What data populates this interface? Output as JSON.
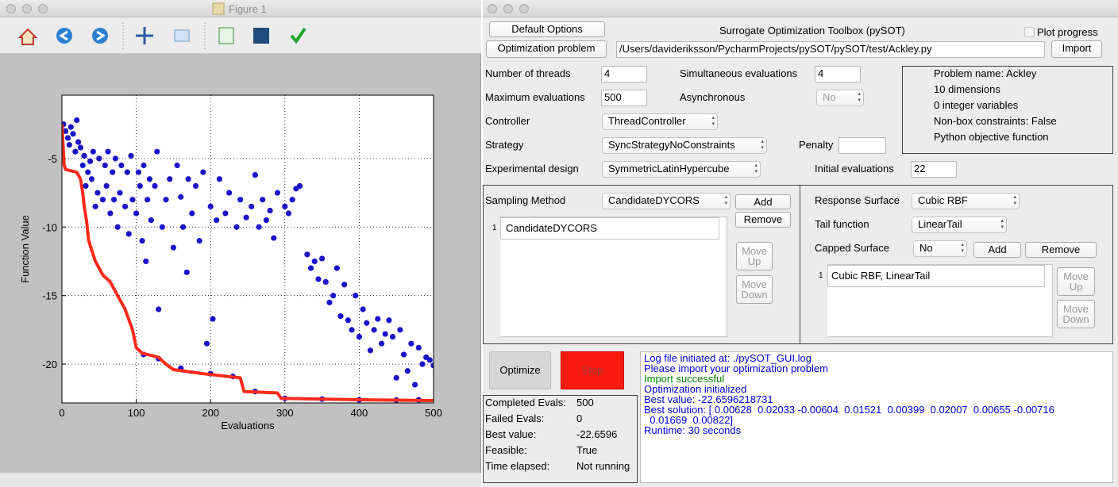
{
  "figure_window": {
    "title": "Figure 1"
  },
  "chart_data": {
    "type": "scatter",
    "xlabel": "Evaluations",
    "ylabel": "Function Value",
    "xlim": [
      0,
      500
    ],
    "ylim": [
      -22.83,
      -0.38
    ],
    "xticks": [
      0,
      100,
      200,
      300,
      400,
      500
    ],
    "yticks": [
      -20,
      -15,
      -10,
      -5
    ],
    "grid": true,
    "series": [
      {
        "type": "scatter",
        "color": "#1a14c8",
        "x": [
          2,
          5,
          8,
          10,
          12,
          15,
          18,
          20,
          22,
          25,
          28,
          30,
          32,
          35,
          38,
          40,
          42,
          45,
          48,
          50,
          55,
          58,
          60,
          62,
          65,
          68,
          70,
          72,
          75,
          78,
          80,
          85,
          88,
          90,
          93,
          95,
          100,
          103,
          105,
          108,
          110,
          113,
          115,
          118,
          120,
          125,
          128,
          130,
          135,
          140,
          145,
          150,
          155,
          160,
          163,
          168,
          170,
          175,
          180,
          185,
          190,
          195,
          200,
          203,
          208,
          212,
          220,
          225,
          235,
          240,
          248,
          255,
          260,
          265,
          270,
          275,
          280,
          285,
          290,
          300,
          305,
          310,
          315,
          320,
          330,
          335,
          340,
          345,
          350,
          355,
          360,
          365,
          370,
          375,
          380,
          385,
          390,
          395,
          400,
          405,
          410,
          415,
          420,
          425,
          430,
          435,
          440,
          445,
          450,
          455,
          460,
          465,
          470,
          475,
          480,
          485,
          490,
          495,
          500,
          110,
          130,
          160,
          200,
          230,
          260,
          300,
          350,
          400,
          450,
          480
        ],
        "values": [
          -2.5,
          -3,
          -3.5,
          -4,
          -2.7,
          -3.2,
          -4.5,
          -2.2,
          -3.8,
          -4.2,
          -5.5,
          -4.8,
          -7,
          -6,
          -5.2,
          -6.5,
          -4.5,
          -8.5,
          -7.5,
          -5,
          -8,
          -5.5,
          -7,
          -4.5,
          -9,
          -6,
          -8,
          -5,
          -10,
          -7.5,
          -5.5,
          -8.5,
          -6,
          -10.5,
          -4.8,
          -8,
          -9,
          -6,
          -7,
          -11,
          -5.5,
          -12.5,
          -8,
          -6.5,
          -9.5,
          -7,
          -4.5,
          -16,
          -10,
          -8,
          -6.5,
          -11.5,
          -5.5,
          -7.8,
          -10,
          -13.3,
          -6.5,
          -9,
          -7,
          -11,
          -6,
          -18.5,
          -8.5,
          -16.7,
          -9.5,
          -6.5,
          -9,
          -7.5,
          -10,
          -8,
          -9.3,
          -8.5,
          -6.2,
          -10,
          -8,
          -9.5,
          -8.8,
          -10.8,
          -7.5,
          -8.5,
          -9,
          -8,
          -7.2,
          -7,
          -12,
          -13,
          -12.5,
          -13.8,
          -12.3,
          -14,
          -15.5,
          -15,
          -13,
          -16.5,
          -14.2,
          -16.8,
          -17.5,
          -15,
          -18,
          -16,
          -17,
          -19,
          -17.5,
          -16.7,
          -18.5,
          -17.8,
          -16.8,
          -18,
          -21,
          -17.5,
          -19.3,
          -20.5,
          -18.5,
          -21.5,
          -18.8,
          -20,
          -19.5,
          -19.7,
          -20.1,
          -19.3,
          -19.6,
          -20.3,
          -20.7,
          -20.9,
          -22,
          -22.5,
          -22.55,
          -22.6,
          -22.62,
          -22.6
        ]
      },
      {
        "type": "line",
        "color": "#ff2a1a",
        "x": [
          0,
          3,
          5,
          20,
          25,
          28,
          30,
          33,
          36,
          45,
          50,
          55,
          65,
          75,
          85,
          95,
          100,
          108,
          130,
          140,
          150,
          190,
          240,
          245,
          290,
          295,
          400,
          500
        ],
        "values": [
          -2.5,
          -5.5,
          -5.8,
          -6,
          -6.5,
          -7.5,
          -8.5,
          -9.5,
          -11,
          -12.5,
          -13,
          -13.5,
          -14,
          -15,
          -16,
          -17.5,
          -18.8,
          -19.2,
          -19.5,
          -20,
          -20.4,
          -20.7,
          -21,
          -22,
          -22.1,
          -22.5,
          -22.6,
          -22.66
        ]
      }
    ]
  },
  "gui": {
    "default_options": "Default Options",
    "title": "Surrogate Optimization Toolbox (pySOT)",
    "plot_progress": "Plot progress",
    "optimization_problem": "Optimization problem",
    "path": "/Users/davideriksson/PycharmProjects/pySOT/pySOT/test/Ackley.py",
    "import": "Import",
    "threads_label": "Number of threads",
    "threads": "4",
    "simultaneous_label": "Simultaneous evaluations",
    "simultaneous": "4",
    "max_evals_label": "Maximum evaluations",
    "max_evals": "500",
    "asynchronous_label": "Asynchronous",
    "asynchronous": "No",
    "controller_label": "Controller",
    "controller": "ThreadController",
    "strategy_label": "Strategy",
    "strategy": "SyncStrategyNoConstraints",
    "penalty_label": "Penalty",
    "design_label": "Experimental design",
    "design": "SymmetricLatinHypercube",
    "initial_label": "Initial evaluations",
    "initial": "22",
    "info": [
      "Problem name: Ackley",
      "10 dimensions",
      "0 integer variables",
      "Non-box constraints: False",
      "Python objective function"
    ],
    "sampling_label": "Sampling Method",
    "sampling": "CandidateDYCORS",
    "sampling_add": "Add",
    "sampling_remove": "Remove",
    "sampling_list": [
      {
        "index": "1",
        "text": "CandidateDYCORS"
      }
    ],
    "sampling_move_up": "Move\nUp",
    "sampling_move_down": "Move\nDown",
    "surface_label": "Response Surface",
    "surface": "Cubic RBF",
    "tail_label": "Tail function",
    "tail": "LinearTail",
    "capped_label": "Capped Surface",
    "capped": "No",
    "surface_add": "Add",
    "surface_remove": "Remove",
    "surface_list": [
      {
        "index": "1",
        "text": "Cubic RBF, LinearTail"
      }
    ],
    "surface_move_up": "Move\nUp",
    "surface_move_down": "Move\nDown",
    "optimize": "Optimize",
    "stop": "Stop",
    "status": [
      [
        "Completed Evals:",
        "500"
      ],
      [
        "Failed Evals:",
        "0"
      ],
      [
        "Best value:",
        "-22.6596"
      ],
      [
        "Feasible:",
        "True"
      ],
      [
        "Time elapsed:",
        "Not running"
      ]
    ],
    "log": [
      {
        "text": "Log file initiated at: ./pySOT_GUI.log",
        "color": "#0000d8"
      },
      {
        "text": "Please import your optimization problem",
        "color": "#0000d8"
      },
      {
        "text": "Import successful",
        "color": "#008000"
      },
      {
        "text": "Optimization initialized",
        "color": "#0000d8"
      },
      {
        "text": "Best value: -22.6596218731",
        "color": "#0000d8"
      },
      {
        "text": "Best solution: [ 0.00628  0.02033 -0.00604  0.01521  0.00399  0.02007  0.00655 -0.00716",
        "color": "#0000d8"
      },
      {
        "text": "  0.01669  0.00822]",
        "color": "#0000d8"
      },
      {
        "text": "Runtime: 30 seconds",
        "color": "#0000d8"
      }
    ]
  }
}
